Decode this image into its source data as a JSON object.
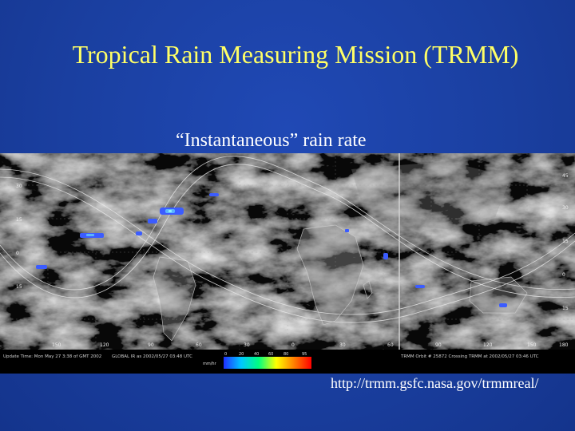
{
  "slide": {
    "title": "Tropical Rain Measuring Mission (TRMM)",
    "subtitle": "“Instantaneous” rain rate",
    "url": "http://trmm.gsfc.nasa.gov/trmmreal/"
  },
  "map": {
    "lon_labels": [
      "150",
      "120",
      "90",
      "60",
      "30",
      "0",
      "30",
      "60",
      "90",
      "120",
      "150",
      "180"
    ],
    "lat_labels_left": [
      "30",
      "15",
      "0",
      "15"
    ],
    "lat_labels_right": [
      "45",
      "30",
      "15",
      "0",
      "15"
    ],
    "footer": {
      "left": "Update Time: Mon May 27 3:38 of GMT 2002",
      "center": "GLOBAL IR as 2002/05/27 03:48 UTC",
      "right": "TRMM Orbit # 25872 Crossing TRMM at 2002/05/27 03:46 UTC"
    },
    "legend": {
      "ticks": [
        "0",
        "20",
        "40",
        "60",
        "80",
        "95"
      ],
      "unit": "mm/hr",
      "colors": [
        "#3050ff",
        "#00c8ff",
        "#00ff80",
        "#ffff00",
        "#ff8000",
        "#ff0000"
      ]
    }
  }
}
